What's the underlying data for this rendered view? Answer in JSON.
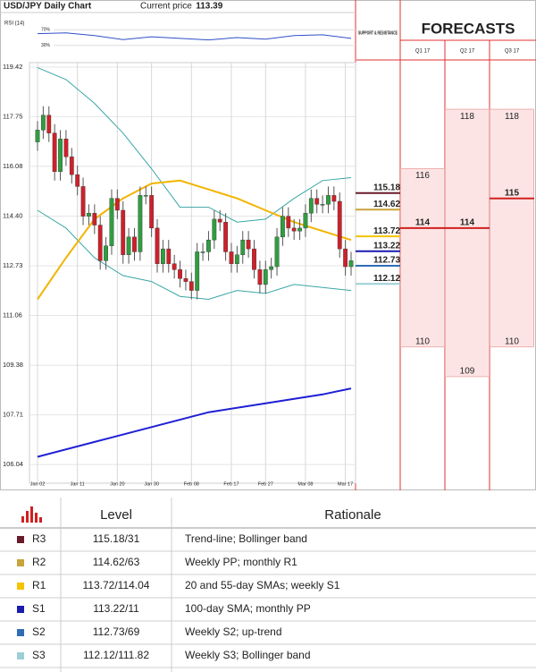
{
  "header": {
    "title": "USD/JPY Daily Chart",
    "price_label": "Current price",
    "price": 113.39
  },
  "rsi": {
    "title": "RSI (14)",
    "ylim": [
      0,
      100
    ],
    "yticks": [
      {
        "value": 70,
        "label": "70%"
      },
      {
        "value": 30,
        "label": "30%"
      }
    ],
    "color": "#3050c8",
    "x": [
      0,
      5,
      10,
      15,
      20,
      25,
      30,
      35,
      40,
      45,
      50,
      55
    ],
    "values": [
      60,
      62,
      55,
      45,
      52,
      48,
      44,
      50,
      46,
      55,
      57,
      48
    ]
  },
  "chart_data": {
    "type": "candlestick",
    "categories": [
      "Jan 02",
      null,
      null,
      null,
      null,
      null,
      null,
      "Jan 11",
      null,
      null,
      null,
      null,
      null,
      null,
      "Jan 20",
      null,
      null,
      null,
      null,
      null,
      "Jan 30",
      null,
      null,
      null,
      null,
      null,
      null,
      "Feb 08",
      null,
      null,
      null,
      null,
      null,
      null,
      "Feb 17",
      null,
      null,
      null,
      null,
      null,
      "Feb 27",
      null,
      null,
      null,
      null,
      null,
      null,
      "Mar 08",
      null,
      null,
      null,
      null,
      null,
      null,
      "Mar 17",
      null
    ],
    "open": [
      116.9,
      117.3,
      117.8,
      117.2,
      115.9,
      117.0,
      116.4,
      115.8,
      115.4,
      114.4,
      114.5,
      114.1,
      112.9,
      113.4,
      115.0,
      114.6,
      113.1,
      113.7,
      113.2,
      115.1,
      115.1,
      114.0,
      112.8,
      113.3,
      112.8,
      112.6,
      112.3,
      112.2,
      111.9,
      113.2,
      113.2,
      113.6,
      114.3,
      114.2,
      113.2,
      112.8,
      113.1,
      113.6,
      113.3,
      112.6,
      112.1,
      112.6,
      112.7,
      113.7,
      114.4,
      114.0,
      113.9,
      114.0,
      114.5,
      115.0,
      114.8,
      114.8,
      115.1,
      114.9,
      113.3,
      112.7
    ],
    "high": [
      117.6,
      118.1,
      118.1,
      117.5,
      117.3,
      117.3,
      116.7,
      116.1,
      115.7,
      114.8,
      114.8,
      114.4,
      113.7,
      115.3,
      115.3,
      114.9,
      114.0,
      114.0,
      115.4,
      115.4,
      115.4,
      114.3,
      113.6,
      113.6,
      113.1,
      112.9,
      112.6,
      112.5,
      113.5,
      113.5,
      113.9,
      114.6,
      114.6,
      114.5,
      113.5,
      113.4,
      113.9,
      113.9,
      113.6,
      112.9,
      112.9,
      113.0,
      114.0,
      114.7,
      114.7,
      114.3,
      114.3,
      114.8,
      115.3,
      115.3,
      115.1,
      115.4,
      115.4,
      115.2,
      113.6,
      113.2
    ],
    "low": [
      116.6,
      117.0,
      116.9,
      115.6,
      115.6,
      116.1,
      115.5,
      115.1,
      114.1,
      114.1,
      113.8,
      112.6,
      112.6,
      113.1,
      114.3,
      112.8,
      112.8,
      112.9,
      112.9,
      114.8,
      113.7,
      112.5,
      112.5,
      112.5,
      112.3,
      112.0,
      111.9,
      111.6,
      111.6,
      112.9,
      112.9,
      113.3,
      113.9,
      112.9,
      112.5,
      112.5,
      112.8,
      113.0,
      112.3,
      111.8,
      111.8,
      112.3,
      112.4,
      113.4,
      113.7,
      113.6,
      113.6,
      113.7,
      114.2,
      114.5,
      114.5,
      114.5,
      114.6,
      113.0,
      112.4,
      112.4
    ],
    "close": [
      117.3,
      117.8,
      117.2,
      115.9,
      117.0,
      116.4,
      115.8,
      115.4,
      114.4,
      114.5,
      114.1,
      112.9,
      113.4,
      115.0,
      114.6,
      113.1,
      113.7,
      113.2,
      115.1,
      115.1,
      114.0,
      112.8,
      113.3,
      112.8,
      112.6,
      112.3,
      112.2,
      111.9,
      113.2,
      113.2,
      113.6,
      114.3,
      114.2,
      113.2,
      112.8,
      113.1,
      113.6,
      113.3,
      112.6,
      112.1,
      112.6,
      112.7,
      113.7,
      114.4,
      114.0,
      113.9,
      114.0,
      114.5,
      115.0,
      114.8,
      114.8,
      115.1,
      114.9,
      113.3,
      112.7,
      112.9
    ],
    "up_color": "#2f9e3f",
    "down_color": "#d0202a",
    "ylim": [
      105.41,
      119.57
    ],
    "yticks": [
      106.04,
      107.71,
      109.38,
      111.06,
      112.73,
      {
        "value": 114.4,
        "label": "114.40"
      },
      116.08,
      117.75,
      119.42
    ],
    "grid": true,
    "overlays": [
      {
        "color": "#3aa6a6",
        "x": [
          0,
          5,
          10,
          15,
          20,
          25,
          30,
          35,
          40,
          45,
          50,
          55
        ],
        "values": [
          119.4,
          119.0,
          118.2,
          117.2,
          116.0,
          114.7,
          114.7,
          114.2,
          114.3,
          115.0,
          115.6,
          115.7
        ]
      },
      {
        "color": "#3aa6a6",
        "x": [
          0,
          5,
          10,
          15,
          20,
          25,
          30,
          35,
          40,
          45,
          50,
          55
        ],
        "values": [
          114.6,
          114.0,
          113.0,
          112.4,
          112.2,
          111.7,
          111.6,
          111.9,
          111.8,
          112.1,
          112.0,
          111.9
        ]
      },
      {
        "color": "#f2b400",
        "x": [
          0,
          5,
          10,
          15,
          20,
          25,
          30,
          35,
          40,
          45,
          50,
          55
        ],
        "values": [
          111.6,
          113.0,
          114.3,
          115.0,
          115.5,
          115.6,
          115.3,
          115.0,
          114.6,
          114.2,
          113.9,
          113.6
        ]
      },
      {
        "color": "#1f1fd6",
        "x": [
          0,
          10,
          20,
          30,
          40,
          50,
          55
        ],
        "values": [
          106.3,
          106.8,
          107.3,
          107.8,
          108.1,
          108.4,
          108.6
        ]
      }
    ]
  },
  "levels": {
    "title": "SUPPORT & RESISTANCE",
    "items": [
      {
        "value": 115.18,
        "color": "#6a1b2a"
      },
      {
        "value": 114.62,
        "color": "#c9a33b"
      },
      {
        "value": 113.72,
        "color": "#f5c400"
      },
      {
        "value": 113.22,
        "color": "#1b1bb0"
      },
      {
        "value": 112.73,
        "color": "#2f6db5"
      },
      {
        "value": 112.12,
        "color": "#9ccfd6"
      }
    ]
  },
  "forecasts": {
    "title": "FORECASTS",
    "quarters": [
      {
        "label": "Q1 17",
        "high": 116,
        "mid": 114,
        "low": 110
      },
      {
        "label": "Q2 17",
        "high": 118,
        "mid": 114,
        "low": 109
      },
      {
        "label": "Q3 17",
        "high": 118,
        "mid": 115,
        "low": 110
      }
    ]
  },
  "table": {
    "header": [
      "Level",
      "Rationale"
    ],
    "rows": [
      [
        "R3",
        "115.18/31",
        "Trend-line; Bollinger band"
      ],
      [
        "R2",
        "114.62/63",
        "Weekly PP; monthly R1"
      ],
      [
        "R1",
        "113.72/114.04",
        "20 and 55-day SMAs; weekly S1"
      ],
      [
        "S1",
        "113.22/11",
        "100-day SMA; monthly PP"
      ],
      [
        "S2",
        "112.73/69",
        "Weekly S2; up-trend"
      ],
      [
        "S3",
        "112.12/111.82",
        "Weekly S3; Bollinger band"
      ]
    ]
  }
}
